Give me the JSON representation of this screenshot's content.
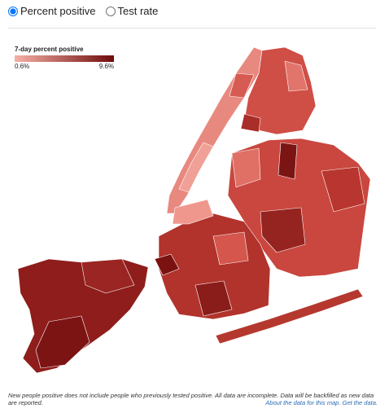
{
  "controls": {
    "options": [
      {
        "label": "Percent positive",
        "selected": true
      },
      {
        "label": "Test rate",
        "selected": false
      }
    ]
  },
  "legend": {
    "title": "7-day percent positive",
    "min_label": "0.6%",
    "max_label": "9.6%",
    "colors": [
      "#f6b0a6",
      "#6e0c0c"
    ]
  },
  "footnote": {
    "text": "New people positive does not include people who previously tested positive. All data are incomplete. Data will be backfilled as new data are reported.",
    "links": [
      "About the data for this map.",
      "Get the data."
    ]
  }
}
